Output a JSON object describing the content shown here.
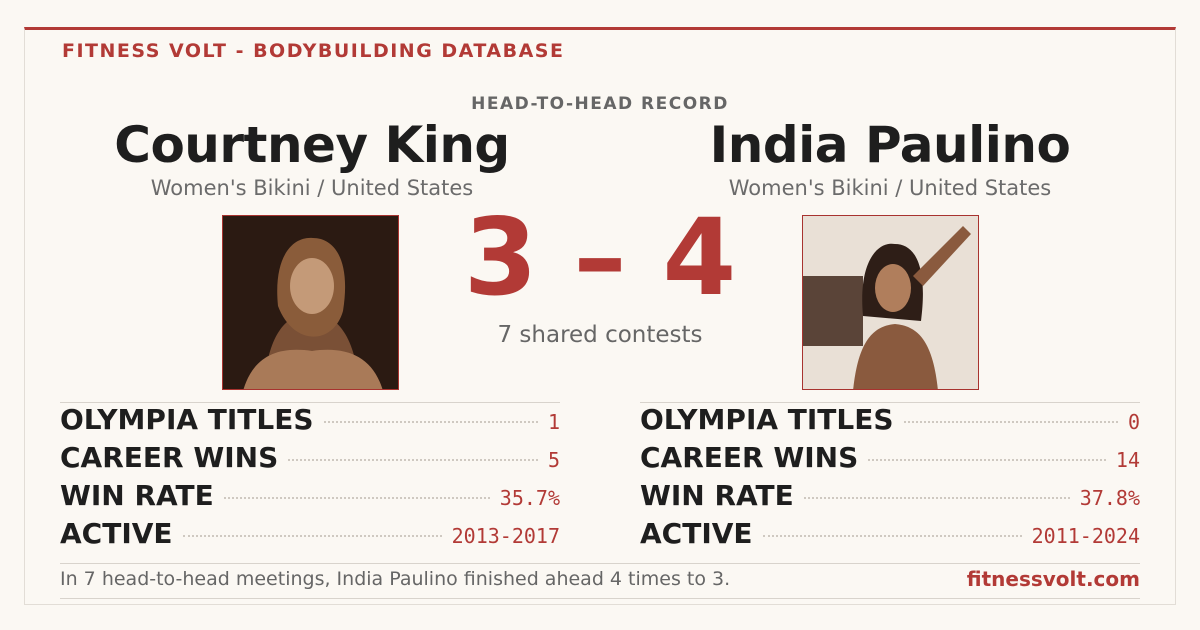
{
  "header": {
    "brand": "FITNESS VOLT - BODYBUILDING DATABASE",
    "label": "HEAD-TO-HEAD RECORD"
  },
  "athletes": [
    {
      "name": "Courtney King",
      "division": "Women's Bikini / United States",
      "stats": [
        {
          "label": "OLYMPIA TITLES",
          "value": "1"
        },
        {
          "label": "CAREER WINS",
          "value": "5"
        },
        {
          "label": "WIN RATE",
          "value": "35.7%"
        },
        {
          "label": "ACTIVE",
          "value": "2013-2017"
        }
      ]
    },
    {
      "name": "India Paulino",
      "division": "Women's Bikini / United States",
      "stats": [
        {
          "label": "OLYMPIA TITLES",
          "value": "0"
        },
        {
          "label": "CAREER WINS",
          "value": "14"
        },
        {
          "label": "WIN RATE",
          "value": "37.8%"
        },
        {
          "label": "ACTIVE",
          "value": "2011-2024"
        }
      ]
    }
  ],
  "score": {
    "left": 3,
    "separator": "–",
    "right": 4,
    "caption": "7 shared contests"
  },
  "footer": {
    "summary": "In 7 head-to-head meetings, India Paulino finished ahead 4 times to 3.",
    "site": "fitnessvolt.com"
  }
}
